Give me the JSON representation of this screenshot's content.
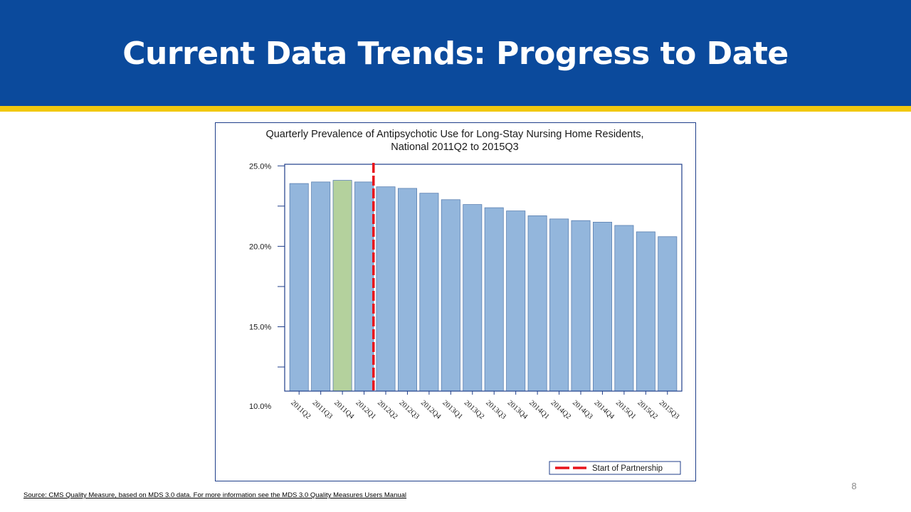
{
  "slide": {
    "title": "Current Data Trends:  Progress to Date",
    "page_number": "8",
    "source_note": "Source: CMS Quality Measure, based on MDS 3.0 data. For more information see the MDS 3.0 Quality Measures Users Manual"
  },
  "colors": {
    "header_band": "#0b4a9c",
    "gold_stripe": "#f1c80f",
    "bar_fill": "#93b6dc",
    "bar_highlight": "#b4d19d",
    "bar_stroke": "#5a7fb0",
    "axis": "#1f3e8a",
    "marker_line": "#e8141b"
  },
  "chart_data": {
    "type": "bar",
    "title_lines": [
      "Quarterly Prevalence of Antipsychotic Use for Long-Stay Nursing Home Residents,",
      "National 2011Q2 to 2015Q3"
    ],
    "categories": [
      "2011Q2",
      "2011Q3",
      "2011Q4",
      "2012Q1",
      "2012Q2",
      "2012Q3",
      "2012Q4",
      "2013Q1",
      "2013Q2",
      "2013Q3",
      "2013Q4",
      "2014Q1",
      "2014Q2",
      "2014Q3",
      "2014Q4",
      "2015Q1",
      "2015Q2",
      "2015Q3"
    ],
    "values": [
      23.9,
      24.0,
      24.1,
      24.0,
      23.7,
      23.6,
      23.3,
      22.9,
      22.6,
      22.4,
      22.2,
      21.9,
      21.7,
      21.6,
      21.5,
      21.3,
      20.9,
      20.6
    ],
    "highlight_category": "2011Q4",
    "ylim": [
      11,
      25.1
    ],
    "y_ticks": [
      {
        "value": 25.0,
        "label": "25.0%"
      },
      {
        "value": 20.0,
        "label": "20.0%"
      },
      {
        "value": 15.0,
        "label": "15.0%"
      },
      {
        "value": 10.0,
        "label": "10.0%"
      }
    ],
    "y_minor_ticks": [
      22.5,
      17.5,
      12.5
    ],
    "xlabel": "",
    "ylabel": "",
    "reference_line": {
      "after_category": "2012Q1",
      "label": "Start of Partnership"
    },
    "legend": {
      "placement": "bottom-right",
      "entries": [
        {
          "label": "Start of Partnership",
          "style": "dashed-red-line"
        }
      ]
    },
    "grid": false
  }
}
